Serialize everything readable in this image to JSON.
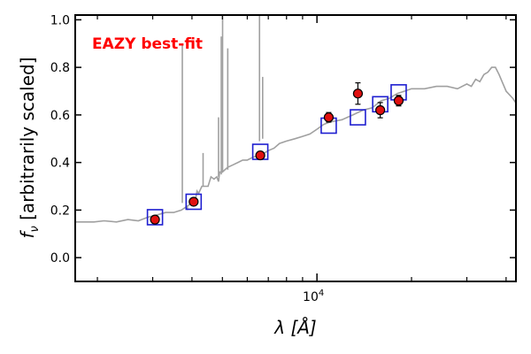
{
  "chart_data": {
    "type": "scatter",
    "annotation": "EAZY best-fit",
    "xlabel": "λ [Å]",
    "ylabel_symbol": "f",
    "ylabel_subscript": "ν",
    "ylabel_rest": " [arbitrarily scaled]",
    "xscale": "log",
    "xlim": [
      1700,
      43000
    ],
    "ylim": [
      -0.1,
      1.02
    ],
    "y_ticks": [
      0.0,
      0.2,
      0.4,
      0.6,
      0.8,
      1.0
    ],
    "y_tick_labels": [
      "0.0",
      "0.2",
      "0.4",
      "0.6",
      "0.8",
      "1.0"
    ],
    "x_major_ticks": [
      10000
    ],
    "x_major_tick_labels": [
      "10^4"
    ],
    "x_minor_ticks": [
      2000,
      3000,
      4000,
      5000,
      6000,
      7000,
      8000,
      9000,
      20000,
      30000,
      40000
    ],
    "colors": {
      "template": "#a0a0a0",
      "model": "#1f1fd0",
      "observed_face": "#e01010",
      "annotation": "#ff0000"
    },
    "series": [
      {
        "name": "template",
        "kind": "line",
        "x": [
          1700,
          1800,
          1950,
          2100,
          2300,
          2500,
          2700,
          2900,
          3100,
          3300,
          3500,
          3700,
          3900,
          4000,
          4050,
          4100,
          4150,
          4200,
          4300,
          4500,
          4600,
          4700,
          4800,
          4860,
          4900,
          5000,
          5200,
          5400,
          5600,
          5800,
          6000,
          6200,
          6500,
          6800,
          7000,
          7300,
          7600,
          8000,
          8500,
          9000,
          9500,
          10000,
          10500,
          11000,
          12000,
          13000,
          14000,
          15000,
          16000,
          17000,
          18000,
          19000,
          20000,
          22000,
          24000,
          26000,
          28000,
          30000,
          31000,
          32000,
          33000,
          34000,
          35000,
          36000,
          37000,
          38000,
          40000,
          42000,
          43000
        ],
        "y": [
          0.15,
          0.15,
          0.15,
          0.155,
          0.15,
          0.16,
          0.155,
          0.17,
          0.18,
          0.19,
          0.19,
          0.2,
          0.22,
          0.23,
          0.25,
          0.24,
          0.28,
          0.27,
          0.3,
          0.3,
          0.34,
          0.33,
          0.34,
          0.32,
          0.36,
          0.36,
          0.38,
          0.39,
          0.4,
          0.41,
          0.41,
          0.42,
          0.43,
          0.44,
          0.45,
          0.46,
          0.48,
          0.49,
          0.5,
          0.51,
          0.52,
          0.54,
          0.56,
          0.57,
          0.58,
          0.6,
          0.62,
          0.63,
          0.66,
          0.67,
          0.69,
          0.7,
          0.71,
          0.71,
          0.72,
          0.72,
          0.71,
          0.73,
          0.72,
          0.75,
          0.74,
          0.77,
          0.78,
          0.8,
          0.8,
          0.77,
          0.7,
          0.67,
          0.65
        ]
      },
      {
        "name": "emission lines",
        "kind": "spikes",
        "x": [
          3727,
          3869,
          4340,
          4861,
          4959,
          5007,
          5200,
          6563,
          6716
        ],
        "peak": [
          0.9,
          0.22,
          0.44,
          0.59,
          0.93,
          1.06,
          0.88,
          1.06,
          0.76
        ],
        "base": [
          0.23,
          0.2,
          0.3,
          0.34,
          0.35,
          0.36,
          0.37,
          0.49,
          0.5
        ]
      },
      {
        "name": "model photometry",
        "kind": "open-squares",
        "x": [
          3050,
          4050,
          6600,
          10900,
          13500,
          15900,
          18200
        ],
        "y": [
          0.17,
          0.235,
          0.445,
          0.555,
          0.59,
          0.645,
          0.695
        ]
      },
      {
        "name": "observed photometry",
        "kind": "filled-circles",
        "x": [
          3050,
          4050,
          6600,
          10900,
          13500,
          15900,
          18200
        ],
        "y": [
          0.16,
          0.235,
          0.43,
          0.59,
          0.69,
          0.62,
          0.66
        ],
        "yerr": [
          0.012,
          0.01,
          0.012,
          0.02,
          0.045,
          0.032,
          0.022
        ]
      }
    ]
  }
}
